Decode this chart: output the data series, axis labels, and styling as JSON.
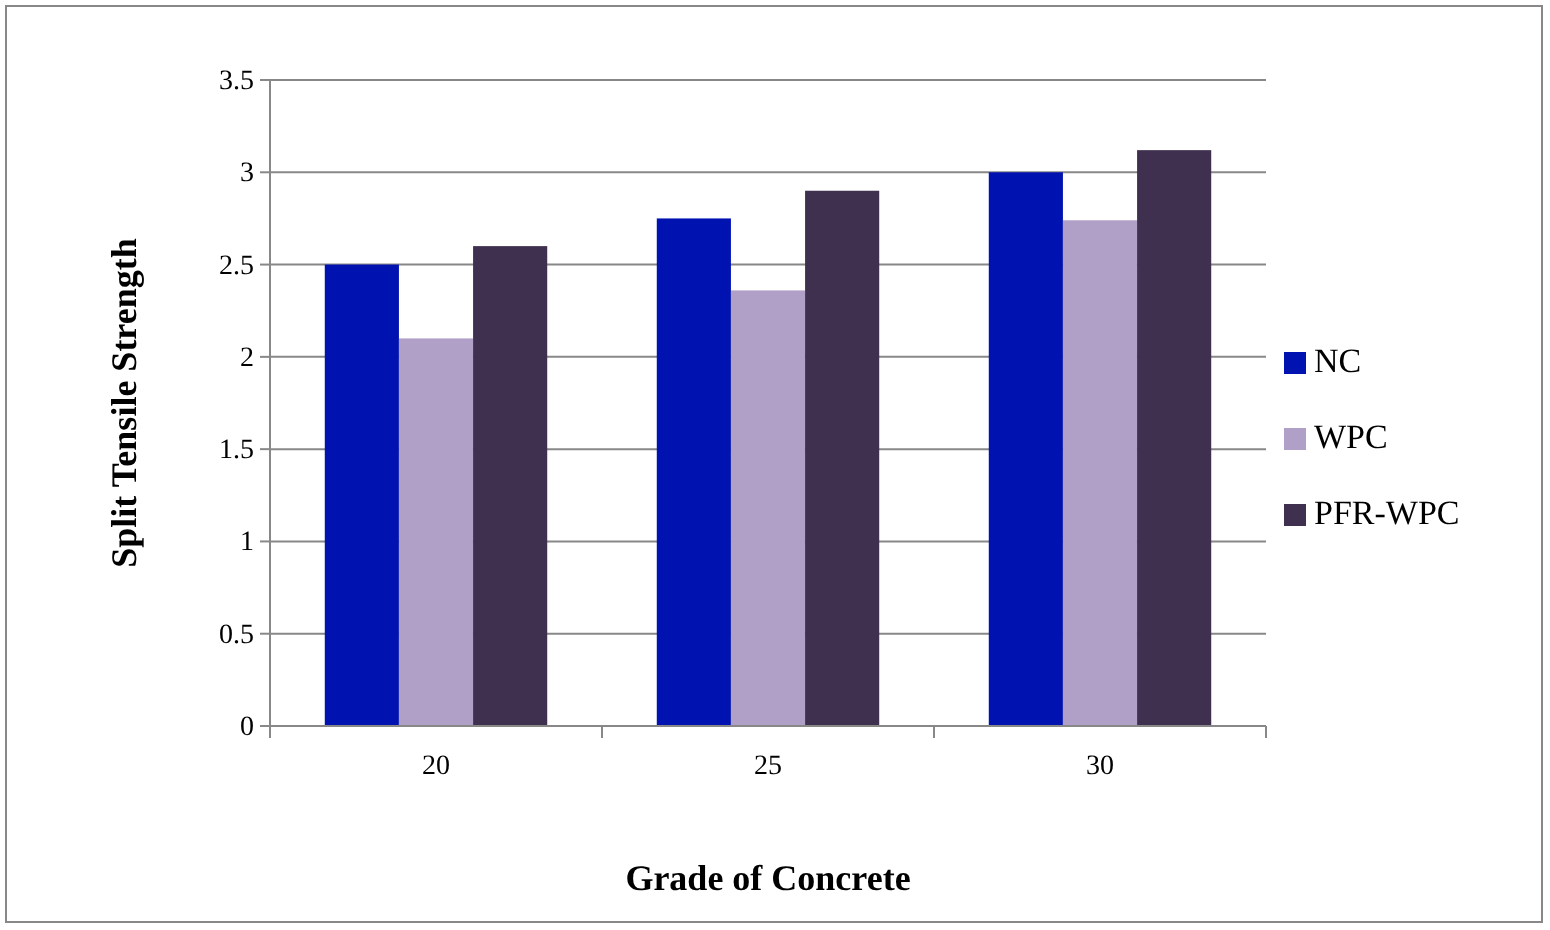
{
  "chart_data": {
    "type": "bar",
    "xlabel": "Grade of Concrete",
    "ylabel": "Split Tensile Strength",
    "categories": [
      "20",
      "25",
      "30"
    ],
    "series": [
      {
        "name": "NC",
        "color": "#0012b0",
        "values": [
          2.5,
          2.75,
          3.0
        ]
      },
      {
        "name": "WPC",
        "color": "#b0a0c8",
        "values": [
          2.1,
          2.36,
          2.74
        ]
      },
      {
        "name": "PFR-WPC",
        "color": "#403050",
        "values": [
          2.6,
          2.9,
          3.12
        ]
      }
    ],
    "ylim": [
      0,
      3.5
    ],
    "yticks": [
      0,
      0.5,
      1,
      1.5,
      2,
      2.5,
      3,
      3.5
    ],
    "grid": "y",
    "legend": "right"
  }
}
